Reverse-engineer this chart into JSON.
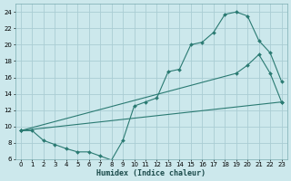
{
  "xlabel": "Humidex (Indice chaleur)",
  "bg_color": "#cce8ec",
  "grid_color": "#aacdd4",
  "line_color": "#2a7a72",
  "xlim": [
    -0.5,
    23.5
  ],
  "ylim": [
    6,
    25
  ],
  "xticks": [
    0,
    1,
    2,
    3,
    4,
    5,
    6,
    7,
    8,
    9,
    10,
    11,
    12,
    13,
    14,
    15,
    16,
    17,
    18,
    19,
    20,
    21,
    22,
    23
  ],
  "yticks": [
    6,
    8,
    10,
    12,
    14,
    16,
    18,
    20,
    22,
    24
  ],
  "line1_x": [
    0,
    1,
    2,
    3,
    4,
    5,
    6,
    7,
    8,
    9,
    10,
    11,
    12,
    13,
    14,
    15,
    16,
    17,
    18,
    19,
    20,
    21,
    22,
    23
  ],
  "line1_y": [
    9.5,
    9.5,
    8.3,
    7.8,
    7.3,
    6.9,
    6.9,
    6.4,
    5.9,
    8.3,
    12.5,
    13.0,
    13.5,
    16.7,
    17.0,
    20.0,
    20.3,
    21.5,
    23.7,
    24.0,
    23.5,
    20.5,
    19.0,
    15.5
  ],
  "line2_x": [
    0,
    19,
    20,
    21,
    22,
    23
  ],
  "line2_y": [
    9.5,
    16.5,
    17.5,
    18.8,
    16.5,
    13.0
  ],
  "line3_x": [
    0,
    23
  ],
  "line3_y": [
    9.5,
    13.0
  ]
}
